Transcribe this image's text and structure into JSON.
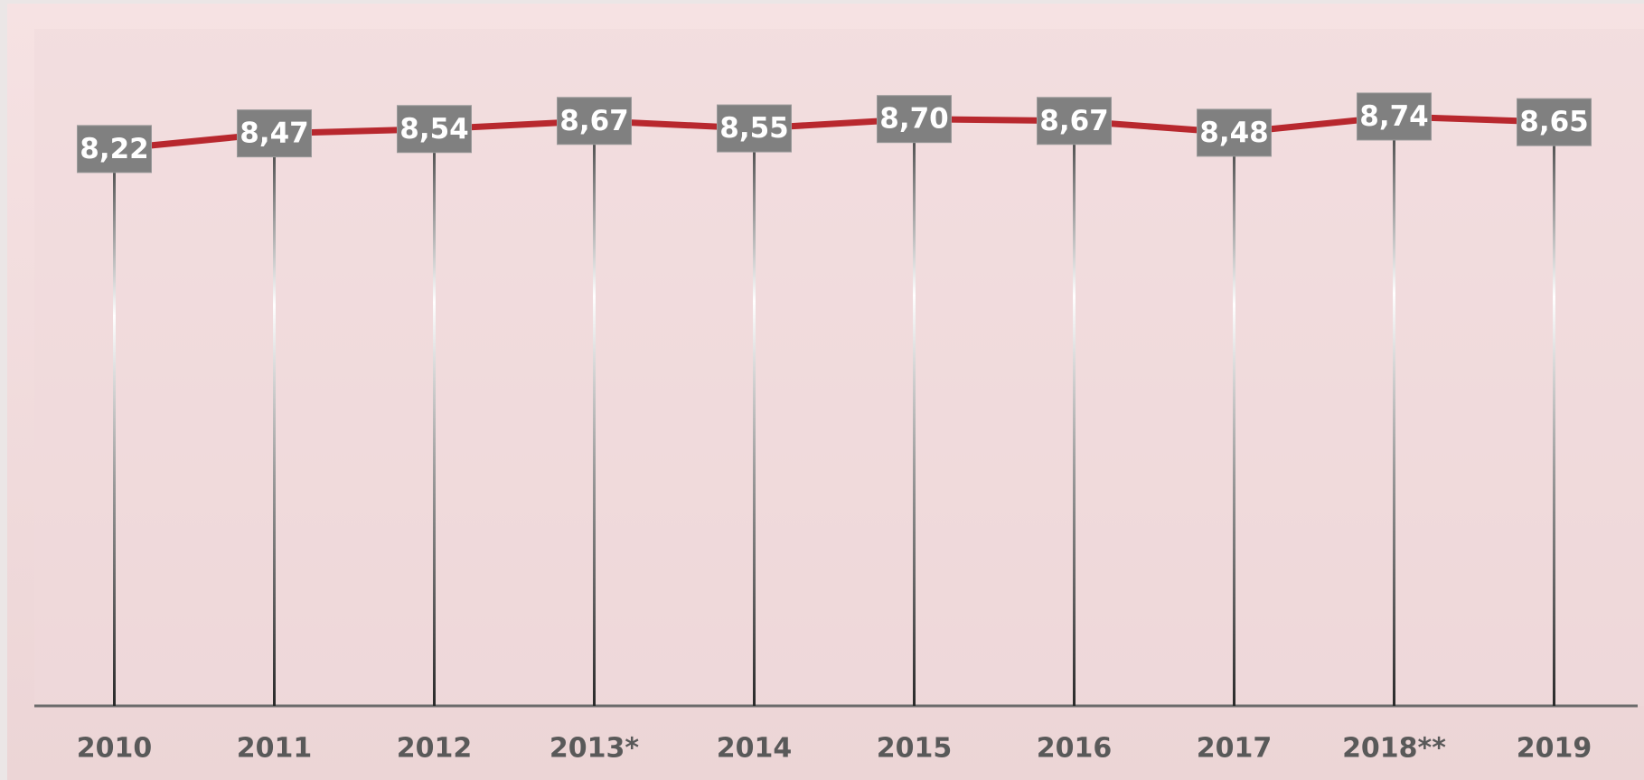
{
  "chart_data": {
    "type": "line",
    "categories": [
      "2010",
      "2011",
      "2012",
      "2013*",
      "2014",
      "2015",
      "2016",
      "2017",
      "2018**",
      "2019"
    ],
    "values": [
      8.22,
      8.47,
      8.54,
      8.67,
      8.55,
      8.7,
      8.67,
      8.48,
      8.74,
      8.65
    ],
    "value_labels": [
      "8,22",
      "8,47",
      "8,54",
      "8,67",
      "8,55",
      "8,70",
      "8,67",
      "8,48",
      "8,74",
      "8,65"
    ],
    "color": "#b8282e",
    "ylim": [
      -0.7,
      10.1
    ]
  }
}
